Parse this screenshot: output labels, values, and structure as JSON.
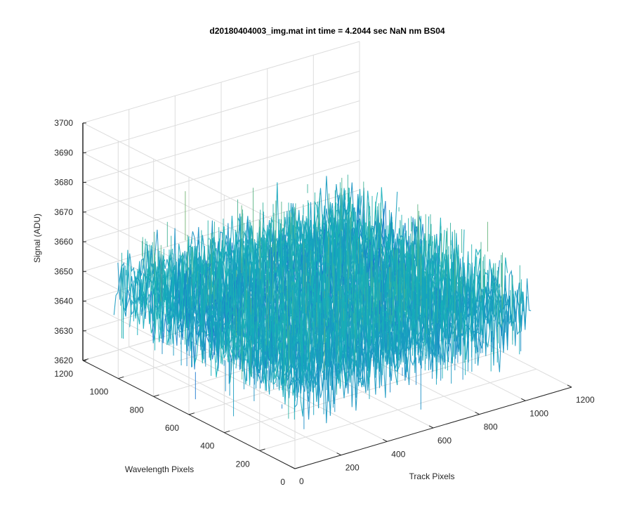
{
  "chart_data": {
    "type": "surface3d",
    "title": "d20180404003_img.mat int time = 4.2044 sec  NaN nm BS04",
    "xlabel": "Track Pixels",
    "ylabel": "Wavelength Pixels",
    "zlabel": "Signal (ADU)",
    "xlim": [
      0,
      1200
    ],
    "ylim": [
      0,
      1200
    ],
    "zlim": [
      3620,
      3700
    ],
    "xticks": [
      "0",
      "200",
      "400",
      "600",
      "800",
      "1000",
      "1200"
    ],
    "yticks": [
      "0",
      "200",
      "400",
      "600",
      "800",
      "1000",
      "1200"
    ],
    "zticks": [
      "3620",
      "3630",
      "3640",
      "3650",
      "3660",
      "3670",
      "3680",
      "3690",
      "3700"
    ],
    "grid": true,
    "colormap": "parula",
    "data_extent": {
      "x": [
        0,
        1024
      ],
      "y": [
        0,
        1024
      ]
    },
    "signal_mean": 3650,
    "signal_range": [
      3624,
      3695
    ],
    "colors": {
      "low": "#1f5fd6",
      "mid": "#14b1b8",
      "high": "#e3b925",
      "grid": "#dcdcdc",
      "axis": "#262626"
    }
  }
}
